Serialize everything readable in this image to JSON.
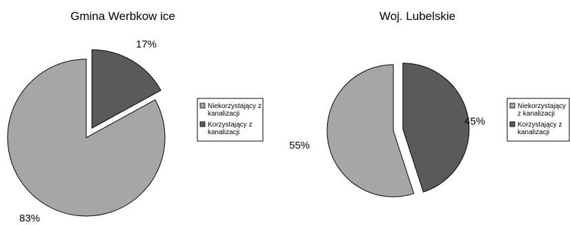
{
  "chart_data": [
    {
      "type": "pie",
      "title": "Gmina Werbkow ice",
      "series": [
        {
          "name": "Niekorzystający z kanalizacji",
          "value": 83,
          "label": "83%",
          "color": "#a6a6a6",
          "legend_lines": [
            "Niekorzystający z",
            "kanalizacji"
          ]
        },
        {
          "name": "Korzystający z kanalizacji",
          "value": 17,
          "label": "17%",
          "color": "#5a5a5a",
          "legend_lines": [
            "Korzystający z",
            "kanalizacji"
          ]
        }
      ],
      "exploded": "Korzystający z kanalizacji",
      "legend_position": "right"
    },
    {
      "type": "pie",
      "title": "Woj. Lubelskie",
      "series": [
        {
          "name": "Niekorzystający z kanalizacji",
          "value": 55,
          "label": "55%",
          "color": "#a6a6a6",
          "legend_lines": [
            "Niekorzystający",
            "z kanalizacji"
          ]
        },
        {
          "name": "Korzystający z kanalizacji",
          "value": 45,
          "label": "45%",
          "color": "#5a5a5a",
          "legend_lines": [
            "Korzystający z",
            "kanalizacji"
          ]
        }
      ],
      "exploded": "Korzystający z kanalizacji",
      "legend_position": "right"
    }
  ]
}
